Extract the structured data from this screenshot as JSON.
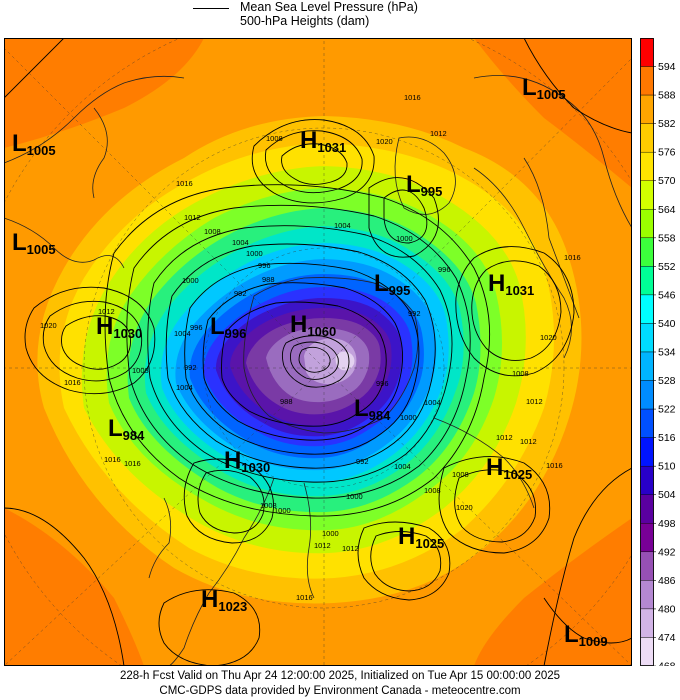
{
  "legend": {
    "mslp_label": "Mean Sea Level Pressure (hPa)",
    "heights_label": "500-hPa Heights (dam)"
  },
  "colorbar": {
    "units": "dam",
    "ticks": [
      594,
      588,
      582,
      576,
      570,
      564,
      558,
      552,
      546,
      540,
      534,
      528,
      522,
      516,
      510,
      504,
      498,
      492,
      486,
      480,
      474,
      468
    ],
    "colors": [
      "#ff0000",
      "#ff7800",
      "#ffa500",
      "#ffcc00",
      "#ffe400",
      "#d2ff00",
      "#9bff00",
      "#3cff3c",
      "#00ff96",
      "#00ffff",
      "#00dcff",
      "#00b4ff",
      "#008cff",
      "#0050ff",
      "#0014ff",
      "#2800c8",
      "#5a00a0",
      "#780096",
      "#9650b4",
      "#b488d2",
      "#d2b4e6",
      "#eddcf5"
    ]
  },
  "systems": [
    {
      "type": "L",
      "value": "1005",
      "name": "low-ne"
    },
    {
      "type": "H",
      "value": "1031",
      "name": "high-north"
    },
    {
      "type": "L",
      "value": "1005",
      "name": "low-west-1"
    },
    {
      "type": "L",
      "value": "995",
      "name": "low-north-coast"
    },
    {
      "type": "L",
      "value": "1005",
      "name": "low-west-2"
    },
    {
      "type": "H",
      "value": "1031",
      "name": "high-east"
    },
    {
      "type": "L",
      "value": "995",
      "name": "low-pole-east"
    },
    {
      "type": "H",
      "value": "1030",
      "name": "high-west"
    },
    {
      "type": "L",
      "value": "996",
      "name": "low-pole-west"
    },
    {
      "type": "H",
      "value": "1060",
      "name": "high-greenland"
    },
    {
      "type": "L",
      "value": "984",
      "name": "low-southwest"
    },
    {
      "type": "L",
      "value": "984",
      "name": "low-pole-south"
    },
    {
      "type": "H",
      "value": "1030",
      "name": "high-south-central"
    },
    {
      "type": "H",
      "value": "1025",
      "name": "high-southeast"
    },
    {
      "type": "H",
      "value": "1025",
      "name": "high-south"
    },
    {
      "type": "H",
      "value": "1023",
      "name": "high-southwest"
    },
    {
      "type": "L",
      "value": "1009",
      "name": "low-se-corner"
    }
  ],
  "isobar_labels": [
    "1016",
    "1012",
    "1008",
    "1004",
    "1000",
    "996",
    "992",
    "988",
    "1020",
    "1016",
    "1012",
    "1008",
    "1004",
    "1000",
    "996",
    "1016",
    "1020",
    "1012",
    "1008",
    "1004",
    "1016",
    "1012",
    "1008",
    "1000",
    "996",
    "992",
    "1020",
    "1016",
    "1012",
    "1008",
    "1004",
    "1000",
    "1000",
    "1012",
    "1016",
    "1016",
    "1012",
    "1008",
    "1004",
    "1000",
    "996",
    "992",
    "988",
    "1008",
    "1012",
    "1016",
    "1020",
    "1000",
    "1004",
    "992"
  ],
  "footer": {
    "line1": "228-h Fcst Valid on Thu Apr 24 12:00:00 2025, Initialized on Tue Apr 15 00:00:00 2025",
    "line2": "CMC-GDPS data provided by Environment Canada - meteocentre.com"
  }
}
